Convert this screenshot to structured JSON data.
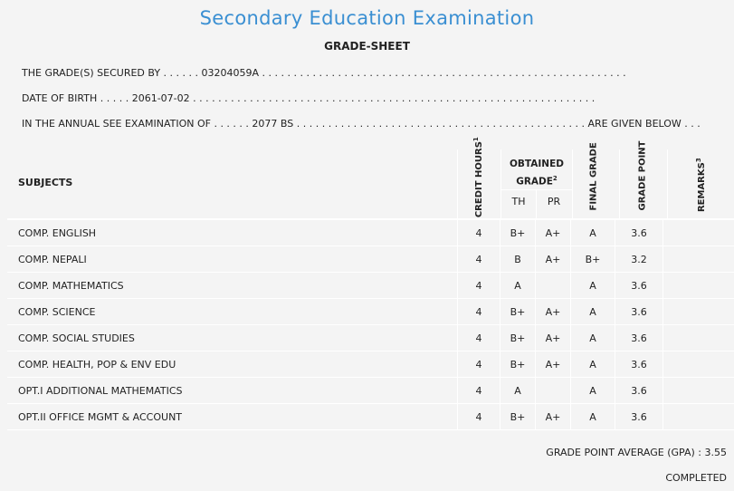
{
  "title": "Secondary Education Examination",
  "subtitle": "GRADE-SHEET",
  "info": [
    {
      "label": "THE GRADE(S) SECURED BY",
      "lead": " . . . . . . ",
      "value": "03204059A",
      "trail": " . . . . . . . . . . . . . . . . . . . . . . . . . . . . . . . . . . . . . . . . . . . . . . . . . . . . . . . . . ."
    },
    {
      "label": "DATE OF BIRTH",
      "lead": " . . . . . ",
      "value": "2061-07-02",
      "trail": " . . . . . . . . . . . . . . . . . . . . . . . . . . . . . . . . . . . . . . . . . . . . . . . . . . . . . . . . . . . . . . . ."
    },
    {
      "label": "IN THE ANNUAL SEE EXAMINATION OF",
      "lead": " . . . . . . ",
      "value": "2077 BS",
      "trail": " . . . . . . . . . . . . . . . . . . . . . . . . . . . . . . . . . . . . . . . . . . . . . . ",
      "end": "ARE GIVEN BELOW . . ."
    }
  ],
  "table": {
    "headers": {
      "subjects": "SUBJECTS",
      "credit": "CREDIT HOURS",
      "credit_sup": "1",
      "obtained": "OBTAINED GRADE",
      "obtained_sup": "2",
      "th": "TH",
      "pr": "PR",
      "final": "FINAL GRADE",
      "gp": "GRADE POINT",
      "remarks": "REMARKS",
      "remarks_sup": "3"
    },
    "rows": [
      {
        "subject": "COMP. ENGLISH",
        "credit": "4",
        "th": "B+",
        "pr": "A+",
        "final": "A",
        "gp": "3.6",
        "remarks": ""
      },
      {
        "subject": "COMP. NEPALI",
        "credit": "4",
        "th": "B",
        "pr": "A+",
        "final": "B+",
        "gp": "3.2",
        "remarks": ""
      },
      {
        "subject": "COMP. MATHEMATICS",
        "credit": "4",
        "th": "A",
        "pr": "",
        "final": "A",
        "gp": "3.6",
        "remarks": ""
      },
      {
        "subject": "COMP. SCIENCE",
        "credit": "4",
        "th": "B+",
        "pr": "A+",
        "final": "A",
        "gp": "3.6",
        "remarks": ""
      },
      {
        "subject": "COMP. SOCIAL STUDIES",
        "credit": "4",
        "th": "B+",
        "pr": "A+",
        "final": "A",
        "gp": "3.6",
        "remarks": ""
      },
      {
        "subject": "COMP. HEALTH, POP & ENV EDU",
        "credit": "4",
        "th": "B+",
        "pr": "A+",
        "final": "A",
        "gp": "3.6",
        "remarks": ""
      },
      {
        "subject": "OPT.I ADDITIONAL MATHEMATICS",
        "credit": "4",
        "th": "A",
        "pr": "",
        "final": "A",
        "gp": "3.6",
        "remarks": ""
      },
      {
        "subject": "OPT.II OFFICE MGMT & ACCOUNT",
        "credit": "4",
        "th": "B+",
        "pr": "A+",
        "final": "A",
        "gp": "3.6",
        "remarks": ""
      }
    ]
  },
  "gpa": "GRADE POINT AVERAGE (GPA) : 3.55",
  "status": "COMPLETED"
}
